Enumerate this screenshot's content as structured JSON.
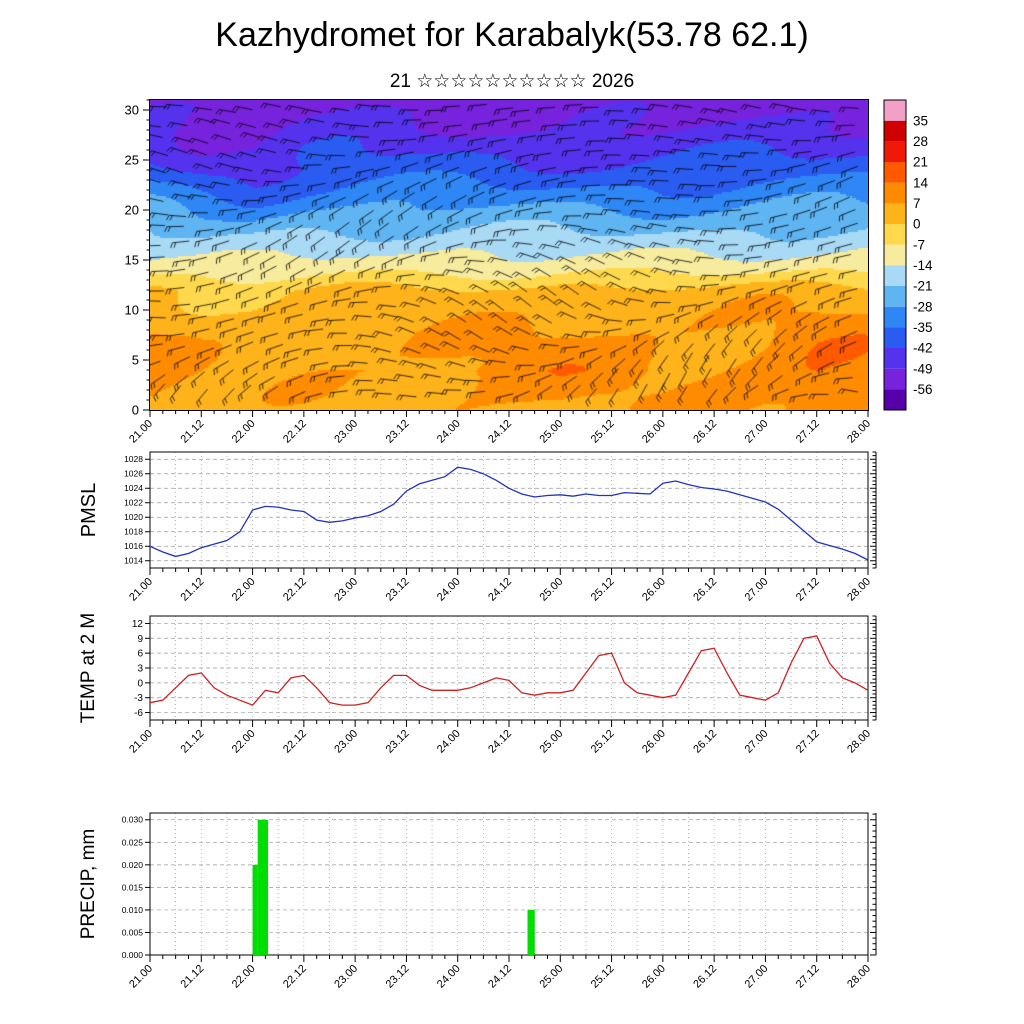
{
  "header": {
    "title": "Kazhydromet for Karabalyk(53.78 62.1)",
    "subtitle": "21 ☆☆☆☆☆☆☆☆☆☆ 2026"
  },
  "x_axis": {
    "range": [
      21.0,
      28.0
    ],
    "tick_step_days": 0.5,
    "tick_labels": [
      "21.00",
      "21.12",
      "22.00",
      "22.12",
      "23.00",
      "23.12",
      "24.00",
      "24.12",
      "25.00",
      "25.12",
      "26.00",
      "26.12",
      "27.00",
      "27.12",
      "28.00"
    ]
  },
  "colorbar": {
    "ticks": [
      35,
      28,
      21,
      14,
      7,
      0,
      -7,
      -14,
      -21,
      -28,
      -35,
      -42,
      -49,
      -56
    ],
    "tick_labels": [
      "35",
      "28",
      "21",
      "14",
      "7",
      "0",
      "-7",
      "-14",
      "-21",
      "-28",
      "-35",
      "-42",
      "-49",
      "-56"
    ],
    "segments": [
      {
        "from": -70,
        "to": -56,
        "color": "#5500a8"
      },
      {
        "from": -56,
        "to": -49,
        "color": "#7722dd"
      },
      {
        "from": -49,
        "to": -42,
        "color": "#5533ee"
      },
      {
        "from": -42,
        "to": -35,
        "color": "#2b5cf2"
      },
      {
        "from": -35,
        "to": -28,
        "color": "#2f86f5"
      },
      {
        "from": -28,
        "to": -21,
        "color": "#5fb4f2"
      },
      {
        "from": -21,
        "to": -14,
        "color": "#a8d9f5"
      },
      {
        "from": -14,
        "to": -7,
        "color": "#f7eb9e"
      },
      {
        "from": -7,
        "to": 0,
        "color": "#ffd94d"
      },
      {
        "from": 0,
        "to": 7,
        "color": "#ffb31a"
      },
      {
        "from": 7,
        "to": 14,
        "color": "#ff8c00"
      },
      {
        "from": 14,
        "to": 21,
        "color": "#ff5a00"
      },
      {
        "from": 21,
        "to": 28,
        "color": "#f21807"
      },
      {
        "from": 28,
        "to": 35,
        "color": "#cf0000"
      },
      {
        "from": 35,
        "to": 42,
        "color": "#f2a0c8"
      }
    ]
  },
  "chart_data": [
    {
      "id": "temperature_cross_section",
      "type": "heatmap",
      "note": "time-height temperature field with dense wind-barb overlay (barb directions not digitized)",
      "ylim": [
        0,
        31
      ],
      "y_ticks": [
        0,
        5,
        10,
        15,
        20,
        25,
        30
      ],
      "y_tick_labels": [
        "0",
        "5",
        "10",
        "15",
        "20",
        "25",
        "30"
      ],
      "x": [
        21.0,
        21.5,
        22.0,
        22.5,
        23.0,
        23.5,
        24.0,
        24.5,
        25.0,
        25.5,
        26.0,
        26.5,
        27.0,
        27.5,
        28.0
      ],
      "y": [
        0,
        4,
        8,
        12,
        14,
        16,
        20,
        24,
        28,
        31
      ],
      "values": [
        [
          9,
          4,
          3,
          4,
          4,
          4,
          6,
          6,
          7,
          6,
          5,
          6,
          8,
          12,
          11
        ],
        [
          11,
          6,
          5,
          6,
          6,
          7,
          9,
          10,
          11,
          10,
          7,
          8,
          10,
          14,
          13
        ],
        [
          7,
          4,
          3,
          4,
          4,
          5,
          6,
          7,
          8,
          7,
          6,
          7,
          8,
          11,
          10
        ],
        [
          2,
          0,
          -1,
          0,
          1,
          1,
          2,
          2,
          3,
          2,
          2,
          2,
          3,
          4,
          4
        ],
        [
          -8,
          -10,
          -11,
          -10,
          -9,
          -9,
          -8,
          -8,
          -8,
          -9,
          -9,
          -9,
          -8,
          -7,
          -7
        ],
        [
          -15,
          -17,
          -17,
          -16,
          -15,
          -15,
          -14,
          -14,
          -15,
          -16,
          -16,
          -16,
          -15,
          -14,
          -14
        ],
        [
          -26,
          -30,
          -32,
          -28,
          -27,
          -26,
          -26,
          -27,
          -28,
          -28,
          -28,
          -27,
          -26,
          -26,
          -26
        ],
        [
          -38,
          -44,
          -46,
          -40,
          -38,
          -38,
          -39,
          -40,
          -40,
          -40,
          -40,
          -39,
          -38,
          -38,
          -38
        ],
        [
          -46,
          -50,
          -52,
          -48,
          -46,
          -47,
          -48,
          -50,
          -50,
          -49,
          -49,
          -48,
          -47,
          -47,
          -47
        ],
        [
          -50,
          -53,
          -55,
          -52,
          -50,
          -51,
          -52,
          -54,
          -54,
          -53,
          -52,
          -52,
          -51,
          -51,
          -51
        ]
      ]
    },
    {
      "id": "pmsl",
      "type": "line",
      "ylabel": "PMSL",
      "color": "#2233bb",
      "ylim": [
        1013,
        1029
      ],
      "y_ticks": [
        1014,
        1016,
        1018,
        1020,
        1022,
        1024,
        1026,
        1028
      ],
      "y_tick_labels": [
        "1014",
        "1016",
        "1018",
        "1020",
        "1022",
        "1024",
        "1026",
        "1028"
      ],
      "x_start": 21.0,
      "x_step": 0.125,
      "values": [
        1016.0,
        1015.2,
        1014.6,
        1015.0,
        1015.8,
        1016.3,
        1016.8,
        1018.0,
        1021.0,
        1021.5,
        1021.4,
        1021.0,
        1020.8,
        1019.6,
        1019.3,
        1019.5,
        1019.9,
        1020.2,
        1020.8,
        1021.8,
        1023.6,
        1024.6,
        1025.1,
        1025.6,
        1026.9,
        1026.6,
        1026.0,
        1025.1,
        1024.0,
        1023.2,
        1022.8,
        1023.0,
        1023.1,
        1022.9,
        1023.2,
        1023.0,
        1023.0,
        1023.4,
        1023.3,
        1023.2,
        1024.7,
        1025.0,
        1024.5,
        1024.1,
        1023.9,
        1023.6,
        1023.1,
        1022.6,
        1022.1,
        1021.1,
        1019.6,
        1018.1,
        1016.6,
        1016.1,
        1015.6,
        1015.0,
        1014.1
      ]
    },
    {
      "id": "temp_2m",
      "type": "line",
      "ylabel": "TEMP at 2 M",
      "color": "#cc2222",
      "ylim": [
        -7.5,
        13.5
      ],
      "y_ticks": [
        -6,
        -3,
        0,
        3,
        6,
        9,
        12
      ],
      "y_tick_labels": [
        "-6",
        "-3",
        "0",
        "3",
        "6",
        "9",
        "12"
      ],
      "x_start": 21.0,
      "x_step": 0.125,
      "values": [
        -4.0,
        -3.5,
        -1.0,
        1.5,
        2.0,
        -1.0,
        -2.5,
        -3.5,
        -4.5,
        -1.5,
        -2.0,
        1.0,
        1.5,
        -1.0,
        -4.0,
        -4.5,
        -4.5,
        -4.0,
        -1.0,
        1.5,
        1.5,
        -0.5,
        -1.5,
        -1.5,
        -1.5,
        -1.0,
        0.0,
        1.0,
        0.5,
        -2.0,
        -2.5,
        -2.0,
        -2.0,
        -1.5,
        2.0,
        5.5,
        6.0,
        0.0,
        -2.0,
        -2.5,
        -3.0,
        -2.5,
        2.0,
        6.5,
        7.0,
        2.0,
        -2.5,
        -3.0,
        -3.5,
        -2.0,
        4.0,
        9.0,
        9.5,
        4.0,
        1.0,
        0.0,
        -1.5
      ]
    },
    {
      "id": "precip",
      "type": "bar",
      "ylabel": "PRECIP, mm",
      "color": "#00dd00",
      "ylim": [
        0,
        0.0315
      ],
      "y_ticks": [
        0.0,
        0.005,
        0.01,
        0.015,
        0.02,
        0.025,
        0.03
      ],
      "y_tick_labels": [
        "0.000",
        "0.005",
        "0.010",
        "0.015",
        "0.020",
        "0.025",
        "0.030"
      ],
      "bars": [
        {
          "x": 22.0,
          "width": 0.05,
          "value": 0.02
        },
        {
          "x": 22.05,
          "width": 0.1,
          "value": 0.03
        },
        {
          "x": 24.68,
          "width": 0.07,
          "value": 0.01
        }
      ]
    }
  ]
}
